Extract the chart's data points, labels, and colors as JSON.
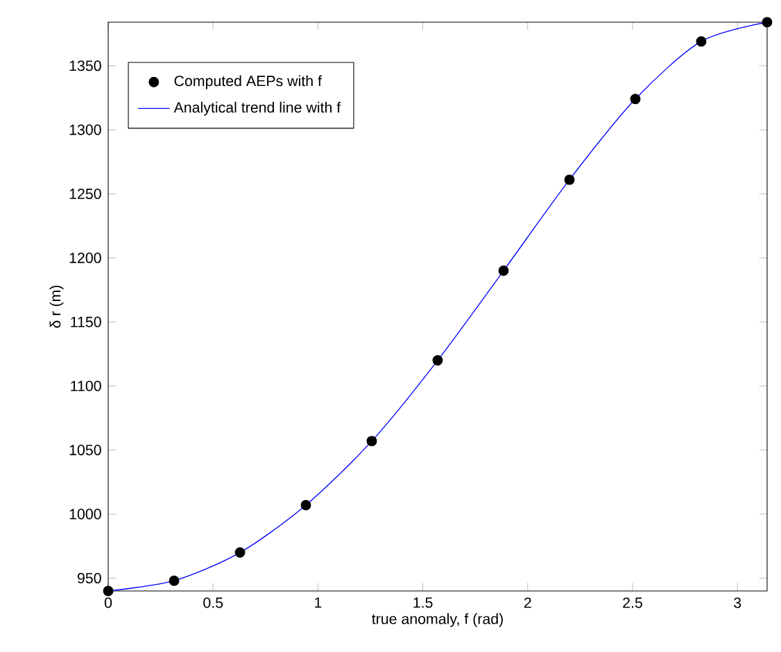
{
  "chart_data": {
    "type": "scatter",
    "xlabel": "true anomaly, f (rad)",
    "ylabel": "δ r (m)",
    "xlim": [
      0,
      3.1416
    ],
    "ylim": [
      940,
      1384
    ],
    "xticks": [
      0,
      0.5,
      1,
      1.5,
      2,
      2.5,
      3
    ],
    "yticks": [
      950,
      1000,
      1050,
      1100,
      1150,
      1200,
      1250,
      1300,
      1350
    ],
    "grid": false,
    "legend": "top left",
    "series": [
      {
        "name": "Computed AEPs with f",
        "marker": "circle",
        "color": "#000000",
        "x": [
          0,
          0.3142,
          0.6283,
          0.9425,
          1.2566,
          1.5708,
          1.885,
          2.1991,
          2.5133,
          2.8274,
          3.1416
        ],
        "values": [
          940,
          948,
          970,
          1007,
          1057,
          1120,
          1190,
          1261,
          1324,
          1369,
          1384
        ]
      },
      {
        "name": "Analytical trend line with f",
        "type": "line",
        "marker": "none",
        "line_style": "solid",
        "color": "#0000ff",
        "x": [
          0,
          0.3142,
          0.6283,
          0.9425,
          1.2566,
          1.5708,
          1.885,
          2.1991,
          2.5133,
          2.8274,
          3.1416
        ],
        "values": [
          940,
          948,
          970,
          1007,
          1057,
          1120,
          1190,
          1261,
          1324,
          1369,
          1384
        ]
      }
    ]
  }
}
